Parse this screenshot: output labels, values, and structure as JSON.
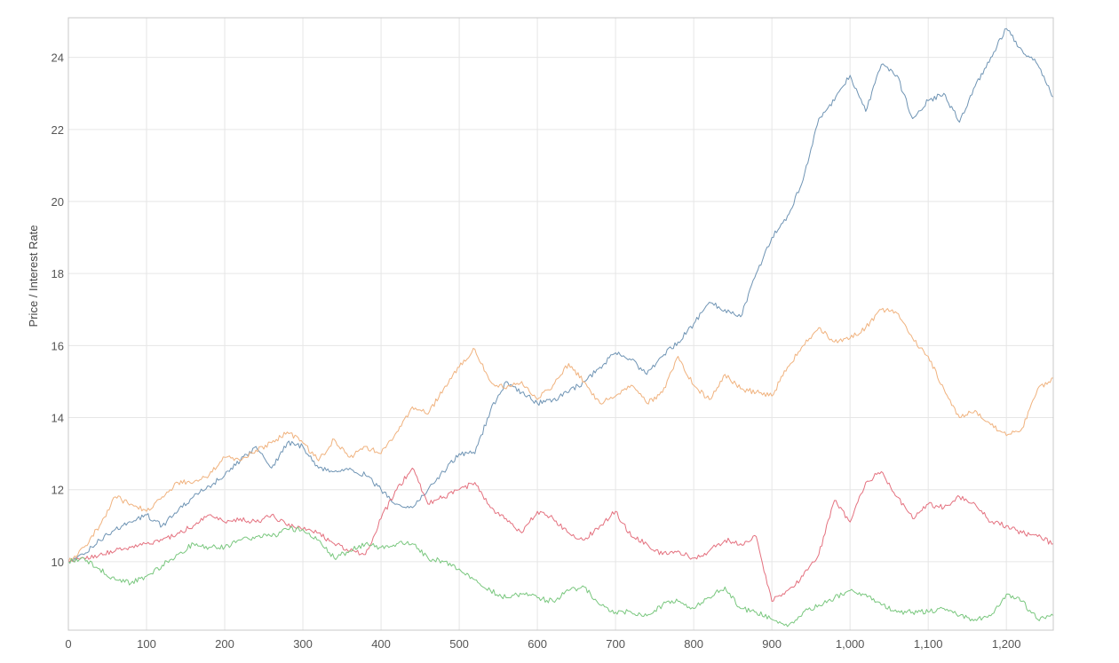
{
  "chart_data": {
    "type": "line",
    "title": "",
    "xlabel": "",
    "ylabel": "Price / Interest Rate",
    "xlim": [
      0,
      1260
    ],
    "ylim": [
      8.1,
      25.1
    ],
    "grid": true,
    "legend": "none",
    "x_ticks": [
      {
        "value": 0,
        "label": "0"
      },
      {
        "value": 100,
        "label": "100"
      },
      {
        "value": 200,
        "label": "200"
      },
      {
        "value": 300,
        "label": "300"
      },
      {
        "value": 400,
        "label": "400"
      },
      {
        "value": 500,
        "label": "500"
      },
      {
        "value": 600,
        "label": "600"
      },
      {
        "value": 700,
        "label": "700"
      },
      {
        "value": 800,
        "label": "800"
      },
      {
        "value": 900,
        "label": "900"
      },
      {
        "value": 1000,
        "label": "1,000"
      },
      {
        "value": 1100,
        "label": "1,100"
      },
      {
        "value": 1200,
        "label": "1,200"
      }
    ],
    "y_ticks": [
      {
        "value": 10,
        "label": "10"
      },
      {
        "value": 12,
        "label": "12"
      },
      {
        "value": 14,
        "label": "14"
      },
      {
        "value": 16,
        "label": "16"
      },
      {
        "value": 18,
        "label": "18"
      },
      {
        "value": 20,
        "label": "20"
      },
      {
        "value": 22,
        "label": "22"
      },
      {
        "value": 24,
        "label": "24"
      }
    ],
    "series": [
      {
        "color": "#6f94b4",
        "x": [
          0,
          20,
          40,
          60,
          80,
          100,
          120,
          140,
          160,
          180,
          200,
          220,
          240,
          260,
          280,
          300,
          320,
          340,
          360,
          380,
          400,
          420,
          440,
          460,
          480,
          500,
          520,
          540,
          560,
          580,
          600,
          620,
          640,
          660,
          680,
          700,
          720,
          740,
          760,
          780,
          800,
          820,
          840,
          860,
          880,
          900,
          920,
          940,
          960,
          980,
          1000,
          1020,
          1040,
          1060,
          1080,
          1100,
          1120,
          1140,
          1160,
          1180,
          1200,
          1220,
          1240,
          1260
        ],
        "y": [
          10.0,
          10.2,
          10.6,
          10.9,
          11.1,
          11.3,
          11.0,
          11.4,
          11.8,
          12.1,
          12.4,
          12.8,
          13.2,
          12.6,
          13.3,
          13.2,
          12.6,
          12.5,
          12.6,
          12.4,
          12.0,
          11.6,
          11.5,
          12.0,
          12.5,
          13.0,
          13.0,
          14.2,
          15.0,
          14.7,
          14.4,
          14.5,
          14.7,
          15.0,
          15.4,
          15.8,
          15.6,
          15.2,
          15.7,
          16.1,
          16.6,
          17.2,
          17.0,
          16.8,
          18.0,
          19.0,
          19.6,
          20.6,
          22.3,
          22.8,
          23.5,
          22.5,
          23.8,
          23.5,
          22.3,
          22.8,
          23.0,
          22.2,
          23.2,
          24.0,
          24.8,
          24.2,
          23.8,
          22.9
        ]
      },
      {
        "color": "#f0b27e",
        "x": [
          0,
          20,
          40,
          60,
          80,
          100,
          120,
          140,
          160,
          180,
          200,
          220,
          240,
          260,
          280,
          300,
          320,
          340,
          360,
          380,
          400,
          420,
          440,
          460,
          480,
          500,
          520,
          540,
          560,
          580,
          600,
          620,
          640,
          660,
          680,
          700,
          720,
          740,
          760,
          780,
          800,
          820,
          840,
          860,
          880,
          900,
          920,
          940,
          960,
          980,
          1000,
          1020,
          1040,
          1060,
          1080,
          1100,
          1120,
          1140,
          1160,
          1180,
          1200,
          1220,
          1240,
          1260
        ],
        "y": [
          10.0,
          10.4,
          11.0,
          11.8,
          11.6,
          11.4,
          11.8,
          12.2,
          12.2,
          12.4,
          12.9,
          12.8,
          13.1,
          13.3,
          13.6,
          13.3,
          12.8,
          13.4,
          12.9,
          13.2,
          13.0,
          13.6,
          14.3,
          14.1,
          14.8,
          15.4,
          15.9,
          15.0,
          14.8,
          15.0,
          14.5,
          14.9,
          15.5,
          15.0,
          14.4,
          14.6,
          14.9,
          14.4,
          14.7,
          15.7,
          14.9,
          14.5,
          15.2,
          14.8,
          14.7,
          14.6,
          15.4,
          16.0,
          16.5,
          16.1,
          16.2,
          16.5,
          17.0,
          16.9,
          16.2,
          15.7,
          14.8,
          14.0,
          14.2,
          13.8,
          13.5,
          13.7,
          14.8,
          15.1
        ]
      },
      {
        "color": "#e4717f",
        "x": [
          0,
          20,
          40,
          60,
          80,
          100,
          120,
          140,
          160,
          180,
          200,
          220,
          240,
          260,
          280,
          300,
          320,
          340,
          360,
          380,
          400,
          420,
          440,
          460,
          480,
          500,
          520,
          540,
          560,
          580,
          600,
          620,
          640,
          660,
          680,
          700,
          720,
          740,
          760,
          780,
          800,
          820,
          840,
          860,
          880,
          900,
          920,
          940,
          960,
          980,
          1000,
          1020,
          1040,
          1060,
          1080,
          1100,
          1120,
          1140,
          1160,
          1180,
          1200,
          1220,
          1240,
          1260
        ],
        "y": [
          10.0,
          10.1,
          10.2,
          10.3,
          10.4,
          10.5,
          10.6,
          10.8,
          11.0,
          11.3,
          11.1,
          11.2,
          11.1,
          11.3,
          11.0,
          10.9,
          10.8,
          10.5,
          10.3,
          10.2,
          11.2,
          12.0,
          12.6,
          11.6,
          11.8,
          12.0,
          12.2,
          11.5,
          11.2,
          10.8,
          11.4,
          11.2,
          10.8,
          10.6,
          11.0,
          11.4,
          10.7,
          10.5,
          10.2,
          10.3,
          10.1,
          10.3,
          10.6,
          10.5,
          10.7,
          8.9,
          9.2,
          9.6,
          10.2,
          11.7,
          11.1,
          12.2,
          12.5,
          11.8,
          11.2,
          11.6,
          11.5,
          11.8,
          11.6,
          11.1,
          11.0,
          10.8,
          10.7,
          10.5
        ]
      },
      {
        "color": "#79c77e",
        "x": [
          0,
          20,
          40,
          60,
          80,
          100,
          120,
          140,
          160,
          180,
          200,
          220,
          240,
          260,
          280,
          300,
          320,
          340,
          360,
          380,
          400,
          420,
          440,
          460,
          480,
          500,
          520,
          540,
          560,
          580,
          600,
          620,
          640,
          660,
          680,
          700,
          720,
          740,
          760,
          780,
          800,
          820,
          840,
          860,
          880,
          900,
          920,
          940,
          960,
          980,
          1000,
          1020,
          1040,
          1060,
          1080,
          1100,
          1120,
          1140,
          1160,
          1180,
          1200,
          1220,
          1240,
          1260
        ],
        "y": [
          10.0,
          10.1,
          9.8,
          9.5,
          9.4,
          9.6,
          9.9,
          10.2,
          10.5,
          10.4,
          10.4,
          10.6,
          10.7,
          10.7,
          10.9,
          10.9,
          10.6,
          10.1,
          10.3,
          10.5,
          10.4,
          10.5,
          10.5,
          10.1,
          10.0,
          9.8,
          9.5,
          9.2,
          9.0,
          9.1,
          9.0,
          8.9,
          9.2,
          9.3,
          8.8,
          8.6,
          8.6,
          8.5,
          8.8,
          8.9,
          8.7,
          9.0,
          9.3,
          8.7,
          8.6,
          8.4,
          8.2,
          8.6,
          8.8,
          9.0,
          9.2,
          9.1,
          8.8,
          8.6,
          8.6,
          8.6,
          8.7,
          8.5,
          8.4,
          8.5,
          9.1,
          8.9,
          8.4,
          8.5
        ]
      }
    ]
  }
}
